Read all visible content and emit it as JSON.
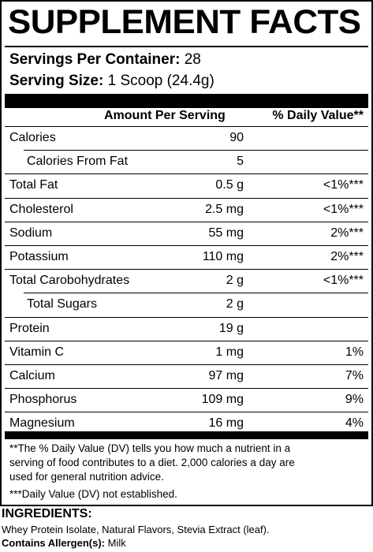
{
  "title": "SUPPLEMENT FACTS",
  "servings_per_container_label": "Servings Per Container:",
  "servings_per_container_value": "28",
  "serving_size_label": "Serving Size:",
  "serving_size_value": "1 Scoop (24.4g)",
  "header": {
    "amount": "Amount Per Serving",
    "daily_value": "% Daily Value**"
  },
  "rows": [
    {
      "name": "Calories",
      "amount": "90",
      "dv": "",
      "indent": false
    },
    {
      "name": "Calories From Fat",
      "amount": "5",
      "dv": "",
      "indent": true
    },
    {
      "name": "Total Fat",
      "amount": "0.5 g",
      "dv": "<1%***",
      "indent": false
    },
    {
      "name": "Cholesterol",
      "amount": "2.5 mg",
      "dv": "<1%***",
      "indent": false
    },
    {
      "name": "Sodium",
      "amount": "55 mg",
      "dv": "2%***",
      "indent": false
    },
    {
      "name": "Potassium",
      "amount": "110 mg",
      "dv": "2%***",
      "indent": false
    },
    {
      "name": "Total Carobohydrates",
      "amount": "2 g",
      "dv": "<1%***",
      "indent": false
    },
    {
      "name": "Total Sugars",
      "amount": "2 g",
      "dv": "",
      "indent": true
    },
    {
      "name": "Protein",
      "amount": "19 g",
      "dv": "",
      "indent": false
    },
    {
      "name": "Vitamin C",
      "amount": "1 mg",
      "dv": "1%",
      "indent": false
    },
    {
      "name": "Calcium",
      "amount": "97 mg",
      "dv": "7%",
      "indent": false
    },
    {
      "name": "Phosphorus",
      "amount": "109 mg",
      "dv": "9%",
      "indent": false
    },
    {
      "name": "Magnesium",
      "amount": "16 mg",
      "dv": "4%",
      "indent": false
    }
  ],
  "footnotes": {
    "line1": "**The % Daily Value (DV) tells you how much a nutrient in a",
    "line2": "serving of food contributes to a diet. 2,000 calories a day are",
    "line3": "used for general nutrition advice.",
    "line4": "***Daily Value (DV) not established."
  },
  "ingredients_title": "INGREDIENTS:",
  "ingredients_text": "Whey Protein Isolate, Natural Flavors, Stevia Extract (leaf).",
  "allergen_label": "Contains Allergen(s):",
  "allergen_value": "Milk"
}
